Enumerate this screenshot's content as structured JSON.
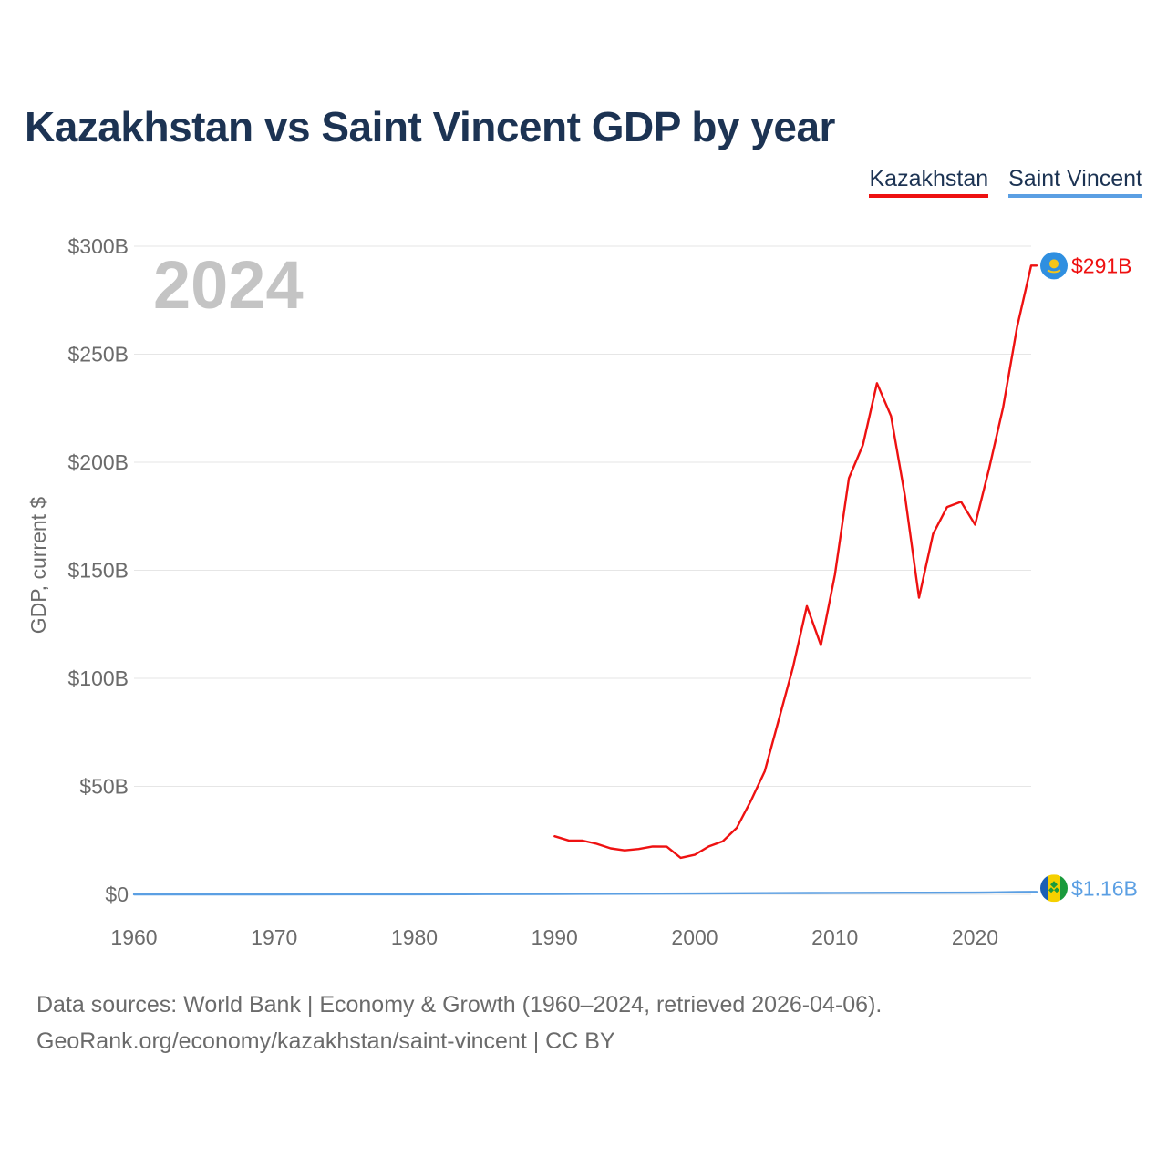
{
  "title": "Kazakhstan vs Saint Vincent GDP by year",
  "year_watermark": "2024",
  "legend": [
    {
      "label": "Kazakhstan",
      "color": "#ee1111"
    },
    {
      "label": "Saint Vincent",
      "color": "#5b9fe3"
    }
  ],
  "source": {
    "line1": "Data sources: World Bank | Economy & Growth (1960–2024, retrieved 2026-04-06).",
    "line2": "GeoRank.org/economy/kazakhstan/saint-vincent | CC BY"
  },
  "chart_data": {
    "type": "line",
    "ylabel": "GDP, current $",
    "xlim": [
      1960,
      2024
    ],
    "ylim": [
      0,
      300
    ],
    "x_ticks": [
      1960,
      1970,
      1980,
      1990,
      2000,
      2010,
      2020
    ],
    "y_ticks": [
      0,
      50,
      100,
      150,
      200,
      250,
      300
    ],
    "y_tick_labels": [
      "$0",
      "$50B",
      "$100B",
      "$150B",
      "$200B",
      "$250B",
      "$300B"
    ],
    "grid": true,
    "legend_position": "top-right",
    "series": [
      {
        "name": "Kazakhstan",
        "color": "#ee1111",
        "end_label": "$291B",
        "flag_icon": "kazakhstan-flag-icon",
        "x": [
          1990,
          1991,
          1992,
          1993,
          1994,
          1995,
          1996,
          1997,
          1998,
          1999,
          2000,
          2001,
          2002,
          2003,
          2004,
          2005,
          2006,
          2007,
          2008,
          2009,
          2010,
          2011,
          2012,
          2013,
          2014,
          2015,
          2016,
          2017,
          2018,
          2019,
          2020,
          2021,
          2022,
          2023,
          2024
        ],
        "values": [
          26.9,
          25.0,
          24.9,
          23.4,
          21.3,
          20.4,
          21.0,
          22.2,
          22.1,
          16.9,
          18.3,
          22.2,
          24.6,
          30.8,
          43.2,
          57.1,
          81.0,
          104.8,
          133.4,
          115.3,
          148.0,
          192.6,
          208.0,
          236.6,
          221.4,
          184.4,
          137.3,
          166.8,
          179.3,
          181.7,
          171.1,
          197.1,
          225.5,
          262.6,
          291.0
        ]
      },
      {
        "name": "Saint Vincent",
        "color": "#5b9fe3",
        "end_label": "$1.16B",
        "flag_icon": "saint-vincent-flag-icon",
        "x": [
          1960,
          1965,
          1970,
          1975,
          1980,
          1985,
          1990,
          1995,
          2000,
          2005,
          2010,
          2015,
          2020,
          2021,
          2022,
          2023,
          2024
        ],
        "values": [
          0.01,
          0.02,
          0.02,
          0.03,
          0.05,
          0.11,
          0.2,
          0.28,
          0.4,
          0.55,
          0.68,
          0.75,
          0.81,
          0.87,
          0.95,
          1.07,
          1.16
        ]
      }
    ]
  }
}
